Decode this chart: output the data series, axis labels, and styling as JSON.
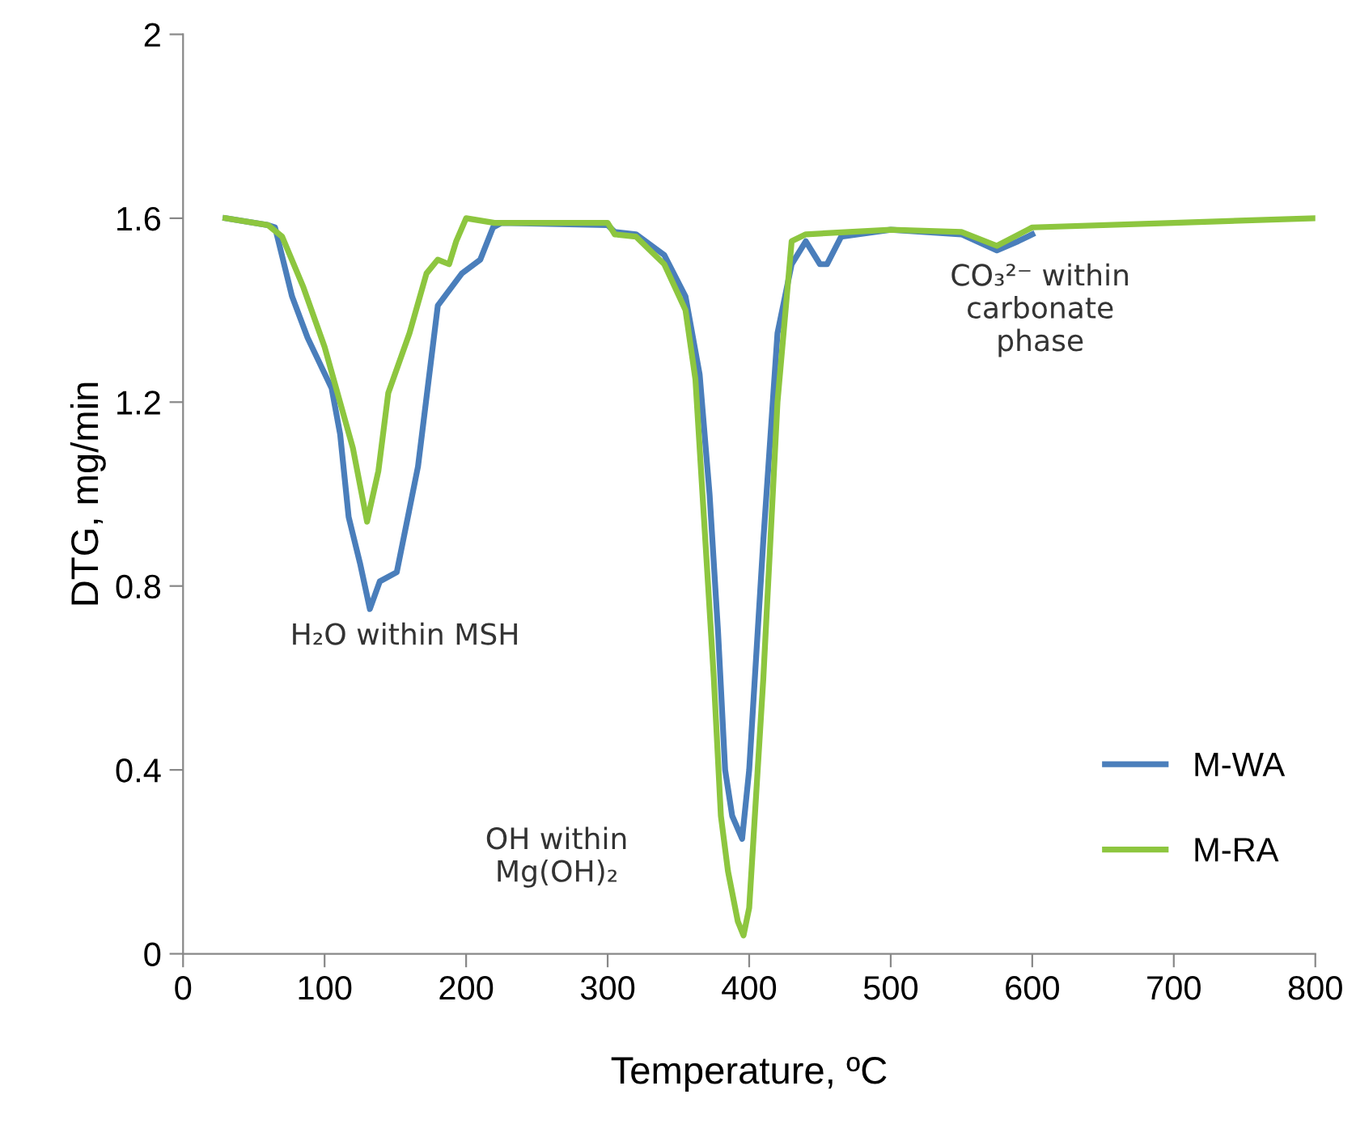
{
  "chart_data": {
    "type": "line",
    "xlabel": "Temperature, ºC",
    "ylabel": "DTG, mg/min",
    "xlim": [
      0,
      800
    ],
    "xticks": [
      0,
      100,
      200,
      300,
      400,
      500,
      600,
      700,
      800
    ],
    "ylim": [
      0,
      2
    ],
    "yticks": [
      0,
      0.4,
      0.8,
      1.2,
      1.6,
      2
    ],
    "grid": false,
    "legend": "bottom right",
    "marker": "none",
    "line_style": "solid",
    "annotations": [
      "H₂O within MSH",
      "OH within\nMg(OH)₂",
      "CO₃²⁻ within\ncarbonate\nphase"
    ],
    "series": [
      {
        "name": "M-WA",
        "color": "#4a7ebb",
        "x": [
          30,
          60,
          65,
          77,
          88,
          105,
          111,
          117,
          125,
          132,
          139,
          151,
          166,
          180,
          197,
          210,
          219,
          225,
          300,
          305,
          320,
          340,
          355,
          365,
          372,
          378,
          383,
          388,
          395,
          400,
          410,
          420,
          430,
          440,
          450,
          455,
          465,
          500,
          550,
          575,
          590,
          600
        ],
        "values": [
          1.6,
          1.585,
          1.58,
          1.43,
          1.34,
          1.23,
          1.13,
          0.95,
          0.85,
          0.75,
          0.81,
          0.83,
          1.06,
          1.41,
          1.48,
          1.51,
          1.58,
          1.59,
          1.585,
          1.57,
          1.565,
          1.52,
          1.43,
          1.26,
          1.0,
          0.7,
          0.4,
          0.3,
          0.25,
          0.4,
          0.9,
          1.35,
          1.5,
          1.55,
          1.5,
          1.5,
          1.56,
          1.575,
          1.565,
          1.53,
          1.55,
          1.565
        ]
      },
      {
        "name": "M-RA",
        "color": "#8dc63f",
        "x": [
          30,
          60,
          70,
          85,
          100,
          120,
          130,
          138,
          145,
          160,
          172,
          180,
          188,
          193,
          200,
          220,
          300,
          305,
          320,
          340,
          355,
          362,
          368,
          375,
          380,
          385,
          392,
          396,
          400,
          410,
          420,
          430,
          440,
          500,
          550,
          575,
          600,
          700,
          800
        ],
        "values": [
          1.6,
          1.585,
          1.56,
          1.45,
          1.32,
          1.1,
          0.94,
          1.05,
          1.22,
          1.35,
          1.48,
          1.51,
          1.5,
          1.55,
          1.6,
          1.59,
          1.59,
          1.565,
          1.56,
          1.5,
          1.4,
          1.25,
          0.95,
          0.6,
          0.3,
          0.18,
          0.07,
          0.04,
          0.1,
          0.6,
          1.2,
          1.55,
          1.565,
          1.575,
          1.57,
          1.54,
          1.58,
          1.59,
          1.6
        ]
      }
    ]
  }
}
